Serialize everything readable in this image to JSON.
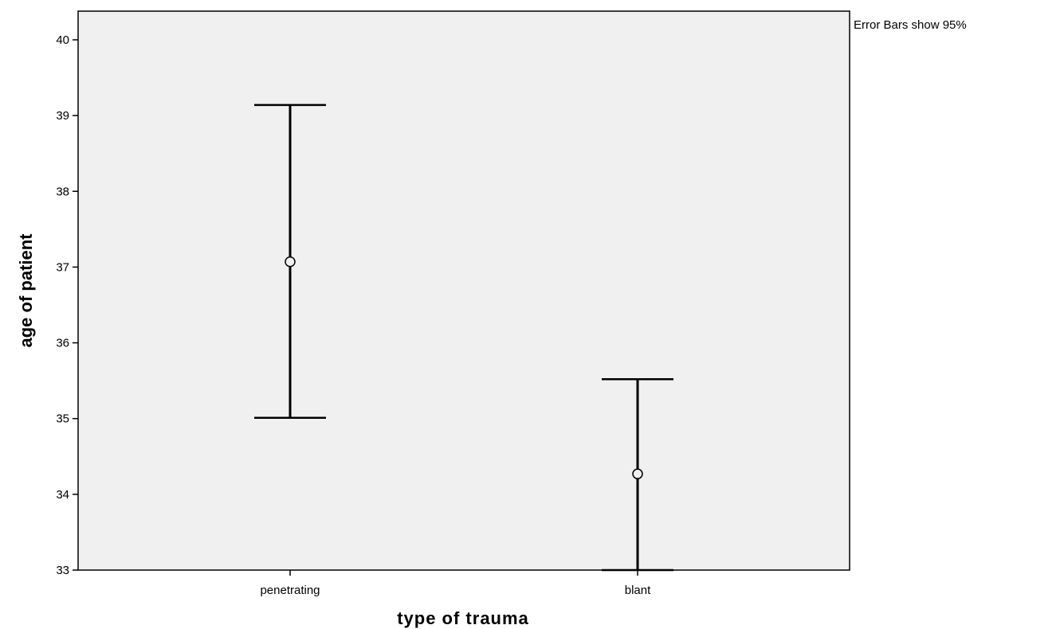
{
  "note": "Error Bars show 95%",
  "chart_data": {
    "type": "errorbar",
    "xlabel": "type of trauma",
    "ylabel": "age of patient",
    "categories": [
      "penetrating",
      "blant"
    ],
    "means": [
      37.07,
      34.27
    ],
    "ci_lower": [
      35.01,
      33.0
    ],
    "ci_upper": [
      39.14,
      35.52
    ],
    "ylim": [
      33,
      40.3
    ],
    "yticks": [
      33,
      34,
      35,
      36,
      37,
      38,
      39,
      40
    ],
    "grid": false,
    "plot_background": "#f0f0f0",
    "line_color": "#000000"
  }
}
